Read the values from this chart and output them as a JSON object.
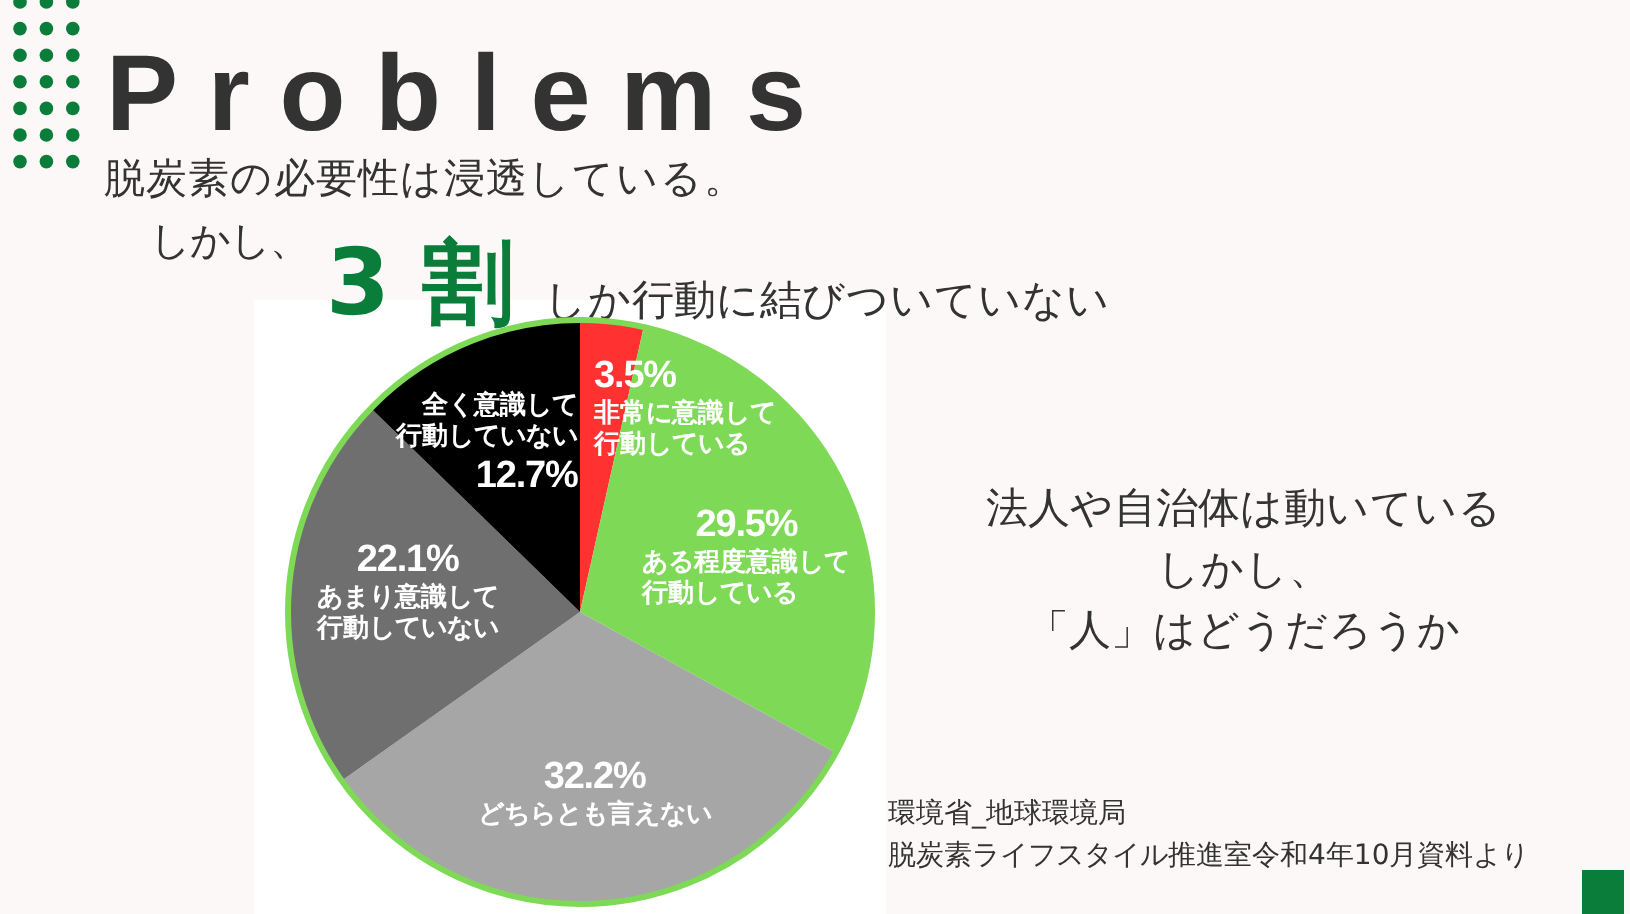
{
  "chart_data": {
    "type": "pie",
    "title": "Problems",
    "subtitle": "脱炭素の必要性は浸透している。",
    "categories": [
      "非常に意識して行動している",
      "ある程度意識して行動している",
      "どちらとも言えない",
      "あまり意識して行動していない",
      "全く意識して行動していない"
    ],
    "values": [
      3.5,
      29.5,
      32.2,
      22.1,
      12.7
    ],
    "colors": [
      "#ff3131",
      "#7ed957",
      "#a6a6a6",
      "#6f6f6f",
      "#000000"
    ],
    "value_labels": [
      "3.5%",
      "29.5%",
      "32.2%",
      "22.1%",
      "12.7%"
    ],
    "annotations": [
      "しかし、",
      "3 割",
      "しか行動に結びついていない",
      "法人や自治体は動いている",
      "しかし、",
      "「人」はどうだろうか",
      "環境省_地球環境局",
      "脱炭素ライフスタイル推進室令和4年10月資料より"
    ]
  }
}
